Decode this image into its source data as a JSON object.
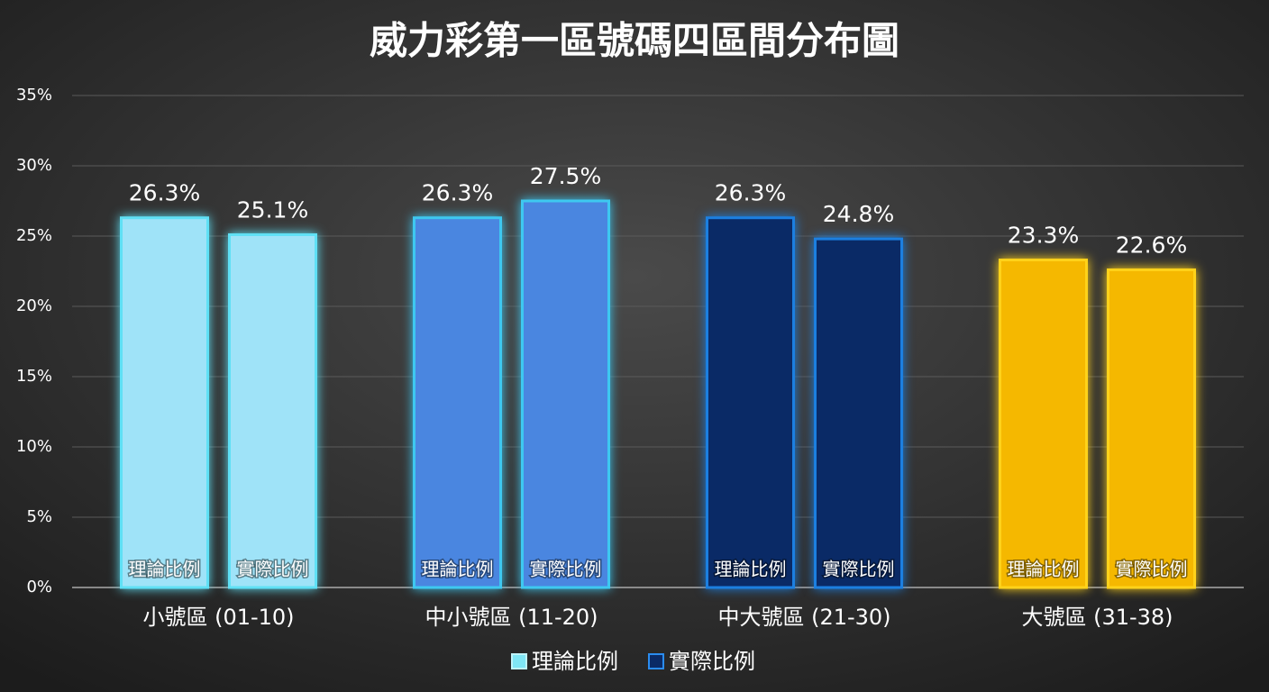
{
  "chart_data": {
    "type": "bar",
    "title": "威力彩第一區號碼四區間分布圖",
    "categories": [
      "小號區 (01-10)",
      "中小號區 (11-20)",
      "中大號區 (21-30)",
      "大號區 (31-38)"
    ],
    "category_colors": [
      "#9fe3f8",
      "#4a86e0",
      "#0a2a66",
      "#f5b800"
    ],
    "category_edge_colors": [
      "#5fe0f5",
      "#3ec8f0",
      "#1c7fe0",
      "#ffd21a"
    ],
    "series": [
      {
        "name": "理論比例",
        "color": "#7fe6f5",
        "values": [
          26.3,
          26.3,
          26.3,
          23.3
        ],
        "value_labels": [
          "26.3%",
          "26.3%",
          "26.3%",
          "23.3%"
        ]
      },
      {
        "name": "實際比例",
        "color": "#0a2a66",
        "values": [
          25.1,
          27.5,
          24.8,
          22.6
        ],
        "value_labels": [
          "25.1%",
          "27.5%",
          "24.8%",
          "22.6%"
        ]
      }
    ],
    "ylim": [
      0,
      35
    ],
    "yticks": [
      {
        "value": 0,
        "label": "0%"
      },
      {
        "value": 5,
        "label": "5%"
      },
      {
        "value": 10,
        "label": "10%"
      },
      {
        "value": 15,
        "label": "15%"
      },
      {
        "value": 20,
        "label": "20%"
      },
      {
        "value": 25,
        "label": "25%"
      },
      {
        "value": 30,
        "label": "30%"
      },
      {
        "value": 35,
        "label": "35%"
      }
    ],
    "grid": true,
    "legend": "bottom"
  }
}
